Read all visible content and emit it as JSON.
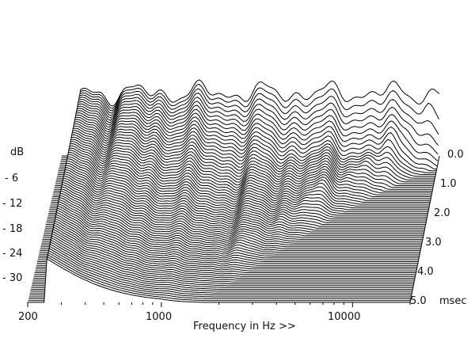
{
  "chart_data": {
    "type": "waterfall",
    "xlabel": "Frequency in Hz >>",
    "ylabel": "dB",
    "zlabel": "msec",
    "x_scale": "log",
    "x_ticks": [
      "200",
      "1000",
      "10000"
    ],
    "y_ticks": [
      "- 6",
      "- 12",
      "- 18",
      "- 24",
      "- 30"
    ],
    "z_ticks": [
      "0.0",
      "1.0",
      "2.0",
      "3.0",
      "4.0",
      "5.0"
    ],
    "xlim": [
      200,
      20000
    ],
    "ylim": [
      -33,
      0
    ],
    "zlim": [
      0,
      5.0
    ],
    "slice_count": 80,
    "line_color": "#000000",
    "fill_color": "#ffffff"
  }
}
